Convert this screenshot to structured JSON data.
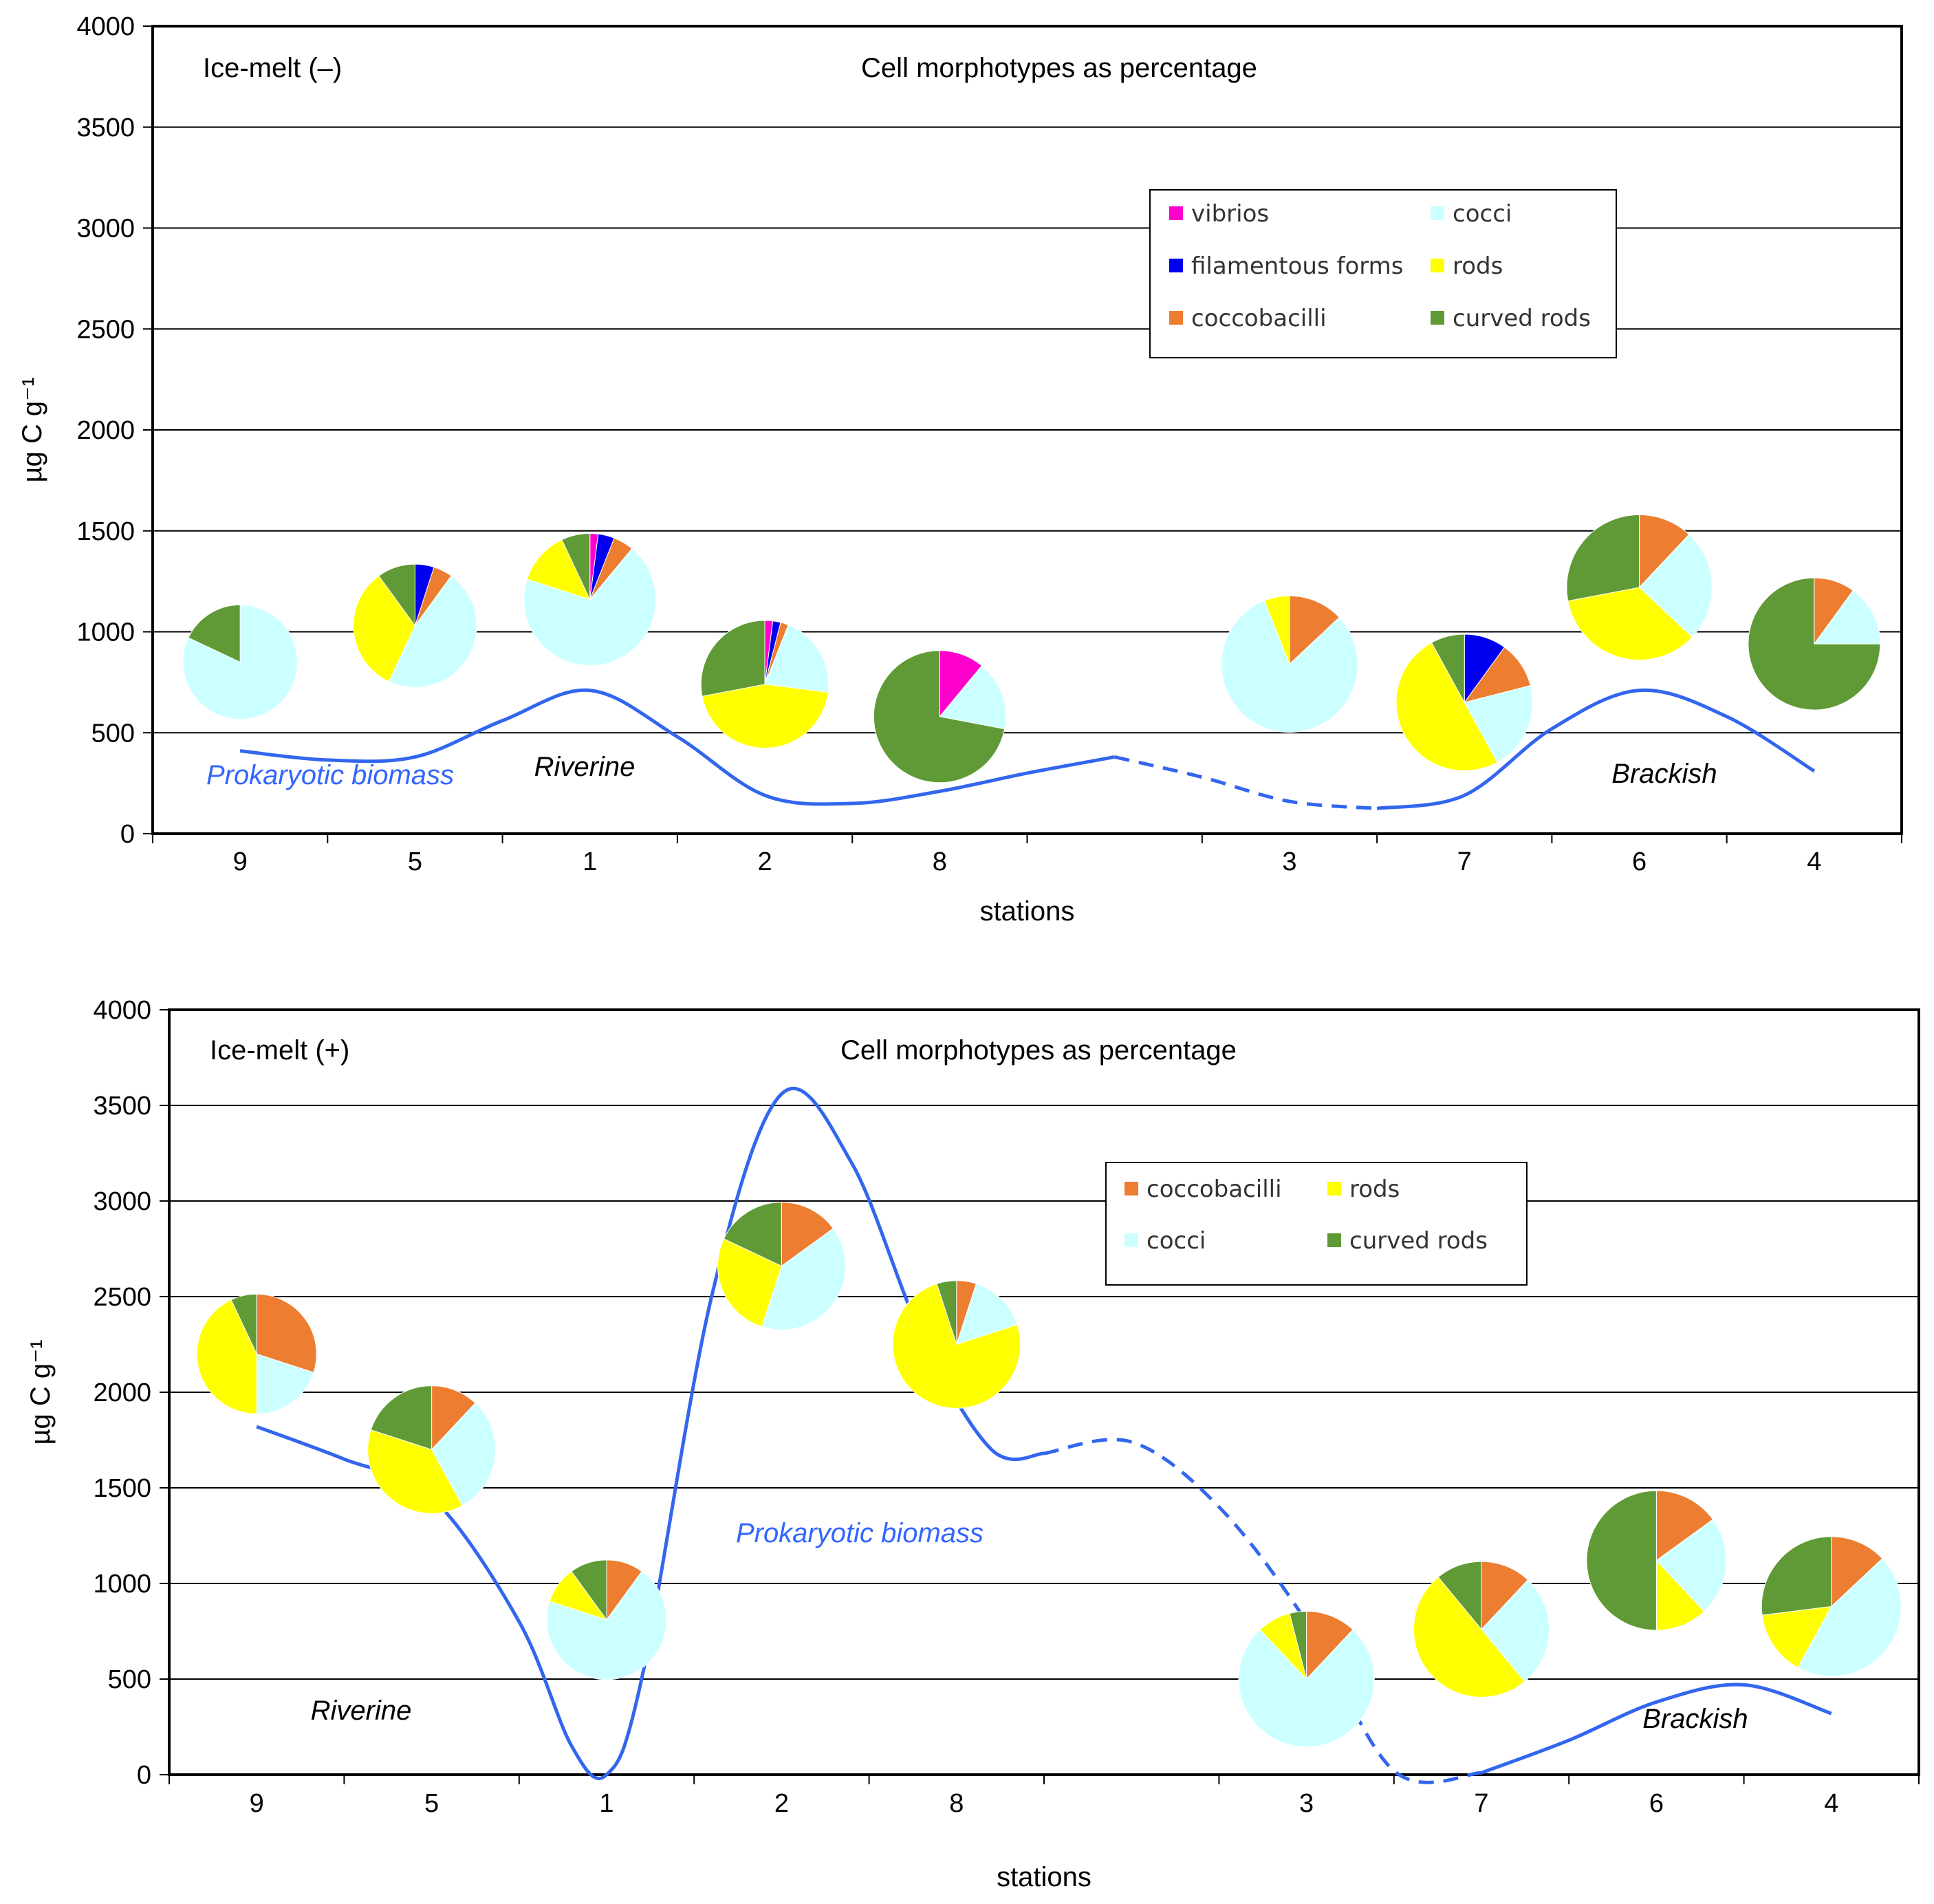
{
  "colors": {
    "vibrios": "#ff00cc",
    "filamentous forms": "#0000ee",
    "coccobacilli": "#ed7d31",
    "cocci": "#ccffff",
    "rods": "#ffff00",
    "curved rods": "#5f9a36",
    "biomass_line": "#3366ee",
    "grid": "#000000"
  },
  "chart_data": [
    {
      "type": "pie",
      "panel_label": "Ice-melt (–)",
      "title": "Cell morphotypes as percentage",
      "xlabel": "stations",
      "ylabel": "µg C g⁻¹",
      "ylim": [
        0,
        4000
      ],
      "yticks": [
        "0",
        "500",
        "1000",
        "1500",
        "2000",
        "2500",
        "3000",
        "3500",
        "4000"
      ],
      "categories": [
        "9",
        "5",
        "1",
        "2",
        "8",
        "",
        "3",
        "7",
        "6",
        "4"
      ],
      "legend": {
        "position": "top-right",
        "entries": [
          "vibrios",
          "cocci",
          "filamentous forms",
          "rods",
          "coccobacilli",
          "curved rods"
        ]
      },
      "morph_order": [
        "vibrios",
        "filamentous forms",
        "coccobacilli",
        "cocci",
        "rods",
        "curved rods"
      ],
      "annotations": {
        "biomass_label": "Prokaryotic biomass",
        "region_left": "Riverine",
        "region_right": "Brackish"
      },
      "biomass_series": {
        "name": "Prokaryotic biomass",
        "solid_points": [
          [
            0,
            410
          ],
          [
            0.5,
            365
          ],
          [
            1,
            380
          ],
          [
            1.5,
            560
          ],
          [
            2,
            710
          ],
          [
            2.5,
            480
          ],
          [
            3,
            190
          ],
          [
            3.5,
            150
          ],
          [
            4,
            210
          ],
          [
            4.5,
            300
          ],
          [
            5,
            380
          ]
        ],
        "dashed_points": [
          [
            5,
            380
          ],
          [
            5.5,
            280
          ],
          [
            6,
            160
          ],
          [
            6.5,
            125
          ]
        ],
        "solid_points_right": [
          [
            6.5,
            125
          ],
          [
            7,
            190
          ],
          [
            7.5,
            520
          ],
          [
            8,
            710
          ],
          [
            8.5,
            580
          ],
          [
            9,
            310
          ]
        ]
      },
      "pies": [
        {
          "station": "9",
          "center_y": 850,
          "size": 1.3,
          "values": {
            "vibrios": 0,
            "filamentous forms": 0,
            "coccobacilli": 0,
            "cocci": 82,
            "rods": 0,
            "curved rods": 18
          }
        },
        {
          "station": "5",
          "center_y": 1030,
          "size": 1.4,
          "values": {
            "vibrios": 0,
            "filamentous forms": 5,
            "coccobacilli": 5,
            "cocci": 47,
            "rods": 33,
            "curved rods": 10
          }
        },
        {
          "station": "1",
          "center_y": 1160,
          "size": 1.5,
          "values": {
            "vibrios": 2,
            "filamentous forms": 4,
            "coccobacilli": 5,
            "cocci": 69,
            "rods": 13,
            "curved rods": 7
          }
        },
        {
          "station": "2",
          "center_y": 740,
          "size": 1.45,
          "values": {
            "vibrios": 2,
            "filamentous forms": 2,
            "coccobacilli": 2,
            "cocci": 21,
            "rods": 45,
            "curved rods": 28
          }
        },
        {
          "station": "8",
          "center_y": 580,
          "size": 1.5,
          "values": {
            "vibrios": 11,
            "filamentous forms": 0,
            "coccobacilli": 0,
            "cocci": 17,
            "rods": 0,
            "curved rods": 72
          }
        },
        {
          "station": "3",
          "center_y": 840,
          "size": 1.55,
          "values": {
            "vibrios": 0,
            "filamentous forms": 0,
            "coccobacilli": 13,
            "cocci": 81,
            "rods": 6,
            "curved rods": 0
          }
        },
        {
          "station": "7",
          "center_y": 650,
          "size": 1.55,
          "values": {
            "vibrios": 0,
            "filamentous forms": 10,
            "coccobacilli": 11,
            "cocci": 21,
            "rods": 50,
            "curved rods": 8
          }
        },
        {
          "station": "6",
          "center_y": 1220,
          "size": 1.65,
          "values": {
            "vibrios": 0,
            "filamentous forms": 0,
            "coccobacilli": 12,
            "cocci": 25,
            "rods": 35,
            "curved rods": 28
          }
        },
        {
          "station": "4",
          "center_y": 940,
          "size": 1.5,
          "values": {
            "vibrios": 0,
            "filamentous forms": 0,
            "coccobacilli": 10,
            "cocci": 15,
            "rods": 0,
            "curved rods": 75
          }
        }
      ]
    },
    {
      "type": "pie",
      "panel_label": "Ice-melt (+)",
      "title": "Cell morphotypes as percentage",
      "xlabel": "stations",
      "ylabel": "µg C g⁻¹",
      "ylim": [
        0,
        4000
      ],
      "yticks": [
        "0",
        "500",
        "1000",
        "1500",
        "2000",
        "2500",
        "3000",
        "3500",
        "4000"
      ],
      "categories": [
        "9",
        "5",
        "1",
        "2",
        "8",
        "",
        "3",
        "7",
        "6",
        "4"
      ],
      "legend": {
        "position": "top-right",
        "entries": [
          "coccobacilli",
          "rods",
          "cocci",
          "curved rods"
        ]
      },
      "morph_order": [
        "vibrios",
        "filamentous forms",
        "coccobacilli",
        "cocci",
        "rods",
        "curved rods"
      ],
      "annotations": {
        "biomass_label": "Prokaryotic biomass",
        "region_left": "Riverine",
        "region_right": "Brackish"
      },
      "biomass_series": {
        "name": "Prokaryotic biomass",
        "solid_points": [
          [
            0,
            1820
          ],
          [
            0.5,
            1650
          ],
          [
            1,
            1450
          ],
          [
            1.5,
            800
          ],
          [
            1.8,
            150
          ],
          [
            2,
            0
          ],
          [
            2.2,
            500
          ],
          [
            2.6,
            2500
          ],
          [
            3,
            3560
          ],
          [
            3.4,
            3200
          ],
          [
            3.8,
            2300
          ],
          [
            4.2,
            1700
          ],
          [
            4.5,
            1680
          ]
        ],
        "dashed_points": [
          [
            4.5,
            1680
          ],
          [
            5,
            1740
          ],
          [
            5.5,
            1400
          ],
          [
            6,
            800
          ],
          [
            6.5,
            20
          ],
          [
            7,
            10
          ]
        ],
        "solid_points_right": [
          [
            7,
            10
          ],
          [
            7.5,
            180
          ],
          [
            8,
            380
          ],
          [
            8.5,
            470
          ],
          [
            9,
            320
          ]
        ]
      },
      "pies": [
        {
          "station": "9",
          "center_y": 2200,
          "size": 1.5,
          "values": {
            "vibrios": 0,
            "filamentous forms": 0,
            "coccobacilli": 30,
            "cocci": 20,
            "rods": 43,
            "curved rods": 7
          }
        },
        {
          "station": "5",
          "center_y": 1700,
          "size": 1.6,
          "values": {
            "vibrios": 0,
            "filamentous forms": 0,
            "coccobacilli": 12,
            "cocci": 30,
            "rods": 38,
            "curved rods": 20
          }
        },
        {
          "station": "1",
          "center_y": 810,
          "size": 1.5,
          "values": {
            "vibrios": 0,
            "filamentous forms": 0,
            "coccobacilli": 10,
            "cocci": 70,
            "rods": 10,
            "curved rods": 10
          }
        },
        {
          "station": "2",
          "center_y": 2660,
          "size": 1.6,
          "values": {
            "vibrios": 0,
            "filamentous forms": 0,
            "coccobacilli": 15,
            "cocci": 40,
            "rods": 27,
            "curved rods": 18
          }
        },
        {
          "station": "8",
          "center_y": 2250,
          "size": 1.6,
          "values": {
            "vibrios": 0,
            "filamentous forms": 0,
            "coccobacilli": 5,
            "cocci": 15,
            "rods": 75,
            "curved rods": 5
          }
        },
        {
          "station": "3",
          "center_y": 500,
          "size": 1.7,
          "values": {
            "vibrios": 0,
            "filamentous forms": 0,
            "coccobacilli": 12,
            "cocci": 76,
            "rods": 8,
            "curved rods": 4
          }
        },
        {
          "station": "7",
          "center_y": 760,
          "size": 1.7,
          "values": {
            "vibrios": 0,
            "filamentous forms": 0,
            "coccobacilli": 12,
            "cocci": 27,
            "rods": 50,
            "curved rods": 11
          }
        },
        {
          "station": "6",
          "center_y": 1120,
          "size": 1.75,
          "values": {
            "vibrios": 0,
            "filamentous forms": 0,
            "coccobacilli": 15,
            "cocci": 23,
            "rods": 12,
            "curved rods": 50
          }
        },
        {
          "station": "4",
          "center_y": 880,
          "size": 1.75,
          "values": {
            "vibrios": 0,
            "filamentous forms": 0,
            "coccobacilli": 13,
            "cocci": 45,
            "rods": 15,
            "curved rods": 27
          }
        }
      ]
    }
  ]
}
